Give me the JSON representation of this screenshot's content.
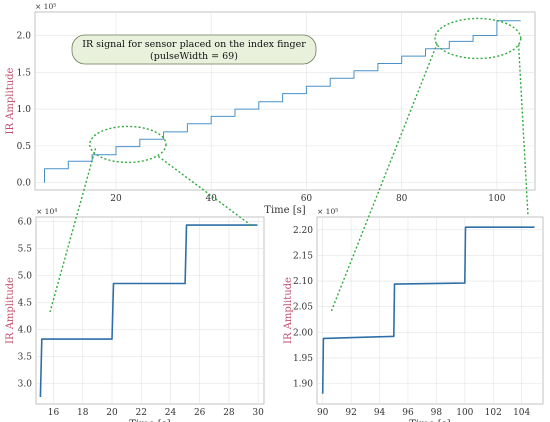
{
  "annotation": {
    "line1": "IR signal for sensor placed on the index finger",
    "line2": "(pulseWidth = 69)"
  },
  "colors": {
    "series": "#4a90c8",
    "series_dark": "#2f6fa8",
    "ylabel": "#c0506e",
    "dotted": "#2eaa3c",
    "annotation_fill": "#e9f1dc"
  },
  "chart_data": [
    {
      "type": "line",
      "panel": "main",
      "xlabel": "Time [s]",
      "ylabel": "IR Amplitude",
      "multiplier": "× 10⁵",
      "xlim": [
        3,
        108
      ],
      "ylim": [
        -0.1,
        2.32
      ],
      "xticks": [
        20,
        40,
        60,
        80,
        100
      ],
      "yticks": [
        0.0,
        0.5,
        1.0,
        1.5,
        2.0
      ],
      "ytick_labels": [
        "0.0",
        "0.5",
        "1.0",
        "1.5",
        "2.0"
      ],
      "grid": true,
      "series": [
        {
          "x": [
            5,
            5,
            10,
            10,
            15,
            15,
            20,
            20,
            25,
            25,
            30,
            30,
            35,
            35,
            40,
            40,
            45,
            45,
            50,
            50,
            55,
            55,
            60,
            60,
            65,
            65,
            70,
            70,
            75,
            75,
            80,
            80,
            85,
            85,
            90,
            90,
            95,
            95,
            100,
            100,
            105
          ],
          "y": [
            0.0,
            0.19,
            0.19,
            0.29,
            0.29,
            0.38,
            0.38,
            0.49,
            0.49,
            0.59,
            0.59,
            0.69,
            0.69,
            0.8,
            0.8,
            0.9,
            0.9,
            1.0,
            1.0,
            1.1,
            1.1,
            1.21,
            1.21,
            1.31,
            1.31,
            1.42,
            1.42,
            1.52,
            1.52,
            1.62,
            1.62,
            1.72,
            1.72,
            1.82,
            1.82,
            1.92,
            1.92,
            2.0,
            2.0,
            2.2,
            2.2
          ]
        }
      ]
    },
    {
      "type": "line",
      "panel": "zoom-left",
      "xlabel": "Time [s]",
      "ylabel": "IR Amplitude",
      "multiplier": "× 10⁴",
      "xlim": [
        14.8,
        30.4
      ],
      "ylim": [
        2.62,
        6.08
      ],
      "xticks": [
        16,
        18,
        20,
        22,
        24,
        26,
        28,
        30
      ],
      "yticks": [
        3.0,
        3.5,
        4.0,
        4.5,
        5.0,
        5.5,
        6.0
      ],
      "ytick_labels": [
        "3.0",
        "3.5",
        "4.0",
        "4.5",
        "5.0",
        "5.5",
        "6.0"
      ],
      "grid": true,
      "series": [
        {
          "x": [
            15.1,
            15.2,
            15.3,
            19.9,
            20.0,
            20.1,
            24.9,
            25.0,
            25.1,
            29.95
          ],
          "y": [
            2.75,
            3.82,
            3.82,
            3.82,
            3.82,
            4.85,
            4.85,
            4.85,
            5.93,
            5.93
          ]
        }
      ]
    },
    {
      "type": "line",
      "panel": "zoom-right",
      "xlabel": "Time [s]",
      "ylabel": "IR Amplitude",
      "multiplier": "× 10⁵",
      "xlim": [
        89.6,
        105.5
      ],
      "ylim": [
        1.86,
        2.225
      ],
      "xticks": [
        90,
        92,
        94,
        96,
        98,
        100,
        102,
        104
      ],
      "yticks": [
        1.9,
        1.95,
        2.0,
        2.05,
        2.1,
        2.15,
        2.2
      ],
      "ytick_labels": [
        "1.90",
        "1.95",
        "2.00",
        "2.05",
        "2.10",
        "2.15",
        "2.20"
      ],
      "grid": true,
      "series": [
        {
          "x": [
            90.0,
            90.05,
            90.1,
            94.95,
            95.0,
            95.05,
            99.95,
            100.0,
            100.05,
            104.9
          ],
          "y": [
            1.88,
            1.988,
            1.988,
            1.992,
            1.992,
            2.094,
            2.096,
            2.096,
            2.205,
            2.205
          ]
        }
      ]
    }
  ]
}
